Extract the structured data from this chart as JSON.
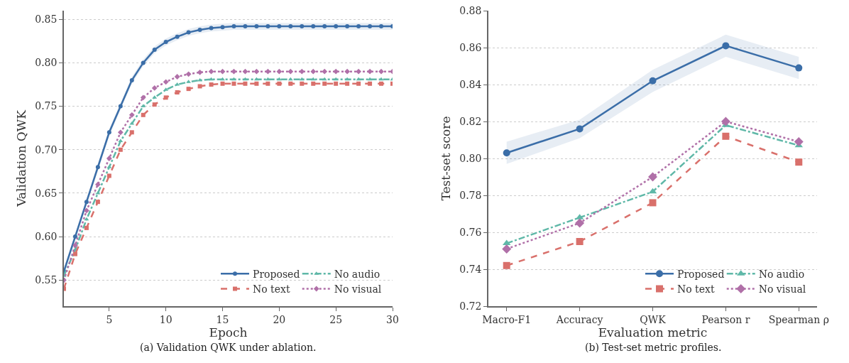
{
  "chart_data": [
    {
      "type": "line",
      "title": "(a) Validation QWK under ablation.",
      "xlabel": "Epoch",
      "ylabel": "Validation QWK",
      "x": [
        1,
        2,
        3,
        4,
        5,
        6,
        7,
        8,
        9,
        10,
        11,
        12,
        13,
        14,
        15,
        16,
        17,
        18,
        19,
        20,
        21,
        22,
        23,
        24,
        25,
        26,
        27,
        28,
        29,
        30
      ],
      "xlim": [
        1,
        30
      ],
      "xticks": [
        5,
        10,
        15,
        20,
        25,
        30
      ],
      "ylim": [
        0.52,
        0.86
      ],
      "yticks": [
        0.55,
        {
          "value": 0.6,
          "label": "0.60"
        },
        0.65,
        {
          "value": 0.7,
          "label": "0.70"
        },
        0.75,
        {
          "value": 0.8,
          "label": "0.80"
        },
        0.85
      ],
      "grid": "y",
      "legend": "bottom right",
      "series": [
        {
          "name": "Proposed",
          "color": "#3b6ea8",
          "marker": "circle",
          "line_style": "solid",
          "values": [
            0.56,
            0.6,
            0.64,
            0.68,
            0.72,
            0.75,
            0.78,
            0.8,
            0.815,
            0.824,
            0.83,
            0.835,
            0.838,
            0.84,
            0.841,
            0.842,
            0.842,
            0.842,
            0.842,
            0.842,
            0.842,
            0.842,
            0.842,
            0.842,
            0.842,
            0.842,
            0.842,
            0.842,
            0.842,
            0.842
          ],
          "lower": [
            0.556,
            0.596,
            0.636,
            0.676,
            0.716,
            0.746,
            0.776,
            0.796,
            0.811,
            0.82,
            0.826,
            0.831,
            0.834,
            0.836,
            0.837,
            0.838,
            0.838,
            0.838,
            0.838,
            0.838,
            0.838,
            0.838,
            0.838,
            0.838,
            0.838,
            0.838,
            0.838,
            0.838,
            0.838,
            0.838
          ],
          "upper": [
            0.564,
            0.604,
            0.644,
            0.684,
            0.724,
            0.754,
            0.784,
            0.804,
            0.819,
            0.828,
            0.834,
            0.839,
            0.842,
            0.844,
            0.845,
            0.846,
            0.846,
            0.846,
            0.846,
            0.846,
            0.846,
            0.846,
            0.846,
            0.846,
            0.846,
            0.846,
            0.846,
            0.846,
            0.846,
            0.846
          ]
        },
        {
          "name": "No audio",
          "color": "#5fb8a8",
          "marker": "triangle",
          "line_style": "dashdot",
          "values": [
            0.555,
            0.585,
            0.62,
            0.65,
            0.68,
            0.71,
            0.73,
            0.75,
            0.76,
            0.769,
            0.775,
            0.778,
            0.78,
            0.781,
            0.781,
            0.781,
            0.781,
            0.781,
            0.781,
            0.781,
            0.781,
            0.781,
            0.781,
            0.781,
            0.781,
            0.781,
            0.781,
            0.781,
            0.781,
            0.781
          ]
        },
        {
          "name": "No text",
          "color": "#d9706b",
          "marker": "square",
          "line_style": "dashed",
          "values": [
            0.54,
            0.58,
            0.61,
            0.64,
            0.67,
            0.7,
            0.72,
            0.74,
            0.752,
            0.76,
            0.766,
            0.77,
            0.773,
            0.775,
            0.776,
            0.776,
            0.776,
            0.776,
            0.776,
            0.776,
            0.776,
            0.776,
            0.776,
            0.776,
            0.776,
            0.776,
            0.776,
            0.776,
            0.776,
            0.776
          ]
        },
        {
          "name": "No visual",
          "color": "#b070a8",
          "marker": "diamond",
          "line_style": "dotted",
          "values": [
            0.55,
            0.59,
            0.63,
            0.66,
            0.69,
            0.72,
            0.74,
            0.76,
            0.771,
            0.778,
            0.784,
            0.787,
            0.789,
            0.79,
            0.79,
            0.79,
            0.79,
            0.79,
            0.79,
            0.79,
            0.79,
            0.79,
            0.79,
            0.79,
            0.79,
            0.79,
            0.79,
            0.79,
            0.79,
            0.79
          ]
        }
      ]
    },
    {
      "type": "line",
      "title": "(b) Test-set metric profiles.",
      "xlabel": "Evaluation metric",
      "ylabel": "Test-set score",
      "categories": [
        "Macro-F1",
        "Accuracy",
        "QWK",
        "Pearson r",
        "Spearman ρ"
      ],
      "ylim": [
        0.72,
        0.88
      ],
      "yticks": [
        0.72,
        0.74,
        0.76,
        0.78,
        {
          "value": 0.8,
          "label": "0.80"
        },
        0.82,
        0.84,
        0.86,
        0.88
      ],
      "grid": "y",
      "legend": "bottom right",
      "series": [
        {
          "name": "Proposed",
          "color": "#3b6ea8",
          "marker": "circle",
          "line_style": "solid",
          "values": [
            0.803,
            0.816,
            0.842,
            0.861,
            0.849
          ],
          "lower": [
            0.797,
            0.811,
            0.836,
            0.855,
            0.843
          ],
          "upper": [
            0.809,
            0.821,
            0.848,
            0.867,
            0.855
          ]
        },
        {
          "name": "No audio",
          "color": "#5fb8a8",
          "marker": "triangle",
          "line_style": "dashdot",
          "values": [
            0.754,
            0.768,
            0.782,
            0.818,
            0.807
          ]
        },
        {
          "name": "No text",
          "color": "#d9706b",
          "marker": "square",
          "line_style": "dashed",
          "values": [
            0.742,
            0.755,
            0.776,
            0.812,
            0.798
          ]
        },
        {
          "name": "No visual",
          "color": "#b070a8",
          "marker": "diamond",
          "line_style": "dotted",
          "values": [
            0.751,
            0.765,
            0.79,
            0.82,
            0.809
          ]
        }
      ]
    }
  ]
}
